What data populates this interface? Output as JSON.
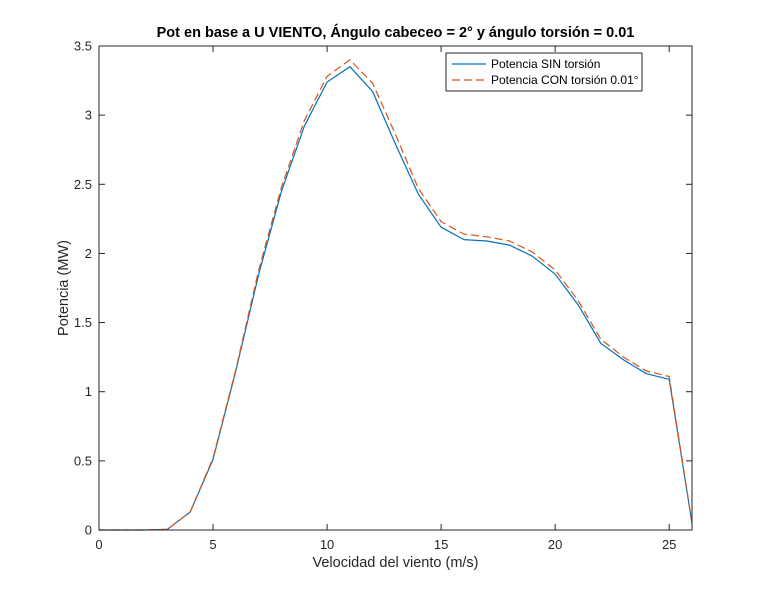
{
  "chart_data": {
    "type": "line",
    "title": "Pot en base a U VIENTO, Ángulo cabeceo = 2° y ángulo torsión = 0.01",
    "xlabel": "Velocidad del viento (m/s)",
    "ylabel": "Potencia (MW)",
    "xlim": [
      0,
      26
    ],
    "ylim": [
      0,
      3.5
    ],
    "xticks": [
      0,
      5,
      10,
      15,
      20,
      25
    ],
    "yticks": [
      0,
      0.5,
      1,
      1.5,
      2,
      2.5,
      3,
      3.5
    ],
    "xtick_labels": [
      "0",
      "5",
      "10",
      "15",
      "20",
      "25"
    ],
    "ytick_labels": [
      "0",
      "0.5",
      "1",
      "1.5",
      "2",
      "2.5",
      "3",
      "3.5"
    ],
    "grid": false,
    "legend_position": "top-right",
    "x": [
      0,
      1,
      2,
      3,
      4,
      5,
      6,
      7,
      8,
      9,
      10,
      11,
      12,
      13,
      14,
      15,
      16,
      17,
      18,
      19,
      20,
      21,
      22,
      23,
      24,
      25,
      26
    ],
    "series": [
      {
        "name": "Potencia SIN torsión",
        "color": "#0072BD",
        "style": "solid",
        "values": [
          0,
          0,
          0,
          0.005,
          0.13,
          0.51,
          1.15,
          1.85,
          2.45,
          2.92,
          3.24,
          3.35,
          3.17,
          2.79,
          2.43,
          2.19,
          2.1,
          2.09,
          2.06,
          1.98,
          1.85,
          1.63,
          1.35,
          1.23,
          1.13,
          1.09,
          0.05
        ]
      },
      {
        "name": "Potencia CON torsión 0.01°",
        "color": "#D95319",
        "style": "dashed",
        "values": [
          0,
          0,
          0,
          0.005,
          0.13,
          0.52,
          1.16,
          1.88,
          2.48,
          2.96,
          3.28,
          3.4,
          3.23,
          2.86,
          2.47,
          2.23,
          2.14,
          2.12,
          2.09,
          2.01,
          1.88,
          1.66,
          1.38,
          1.25,
          1.15,
          1.11,
          0.05
        ]
      }
    ]
  }
}
